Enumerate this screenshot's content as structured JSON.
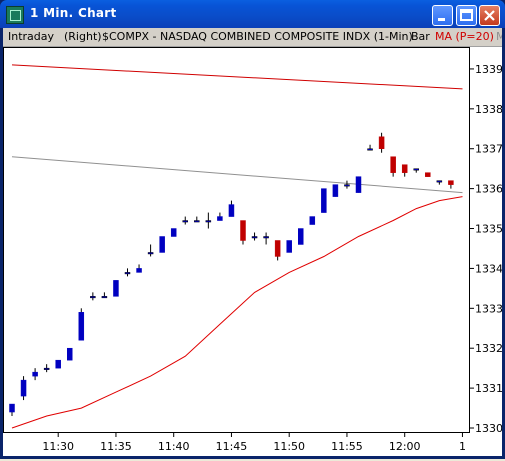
{
  "window": {
    "title": "1  Min. Chart"
  },
  "infobar": {
    "period": "Intraday",
    "scale": "(Right)",
    "symbol": "$COMPX - NASDAQ COMBINED COMPOSITE INDX (1-Min)",
    "style": "Bar",
    "indicator": "MA (P=20)",
    "extra": "M"
  },
  "colors": {
    "up": "#0000c0",
    "down": "#c00000",
    "ma": "#e00000",
    "gray_line": "#909090",
    "red_line": "#d00000"
  },
  "chart_data": {
    "type": "candlestick",
    "xlabel": "",
    "ylabel": "",
    "ylim": [
      1330,
      1339.5
    ],
    "y_ticks": [
      "1330",
      "1331",
      "1332",
      "1333",
      "1334",
      "1335",
      "1336",
      "1337",
      "1338",
      "1339"
    ],
    "x_ticks": [
      "11:30",
      "11:35",
      "11:40",
      "11:45",
      "11:50",
      "11:55",
      "12:00",
      "1"
    ],
    "candles": [
      {
        "t": "11:26",
        "o": 1330.4,
        "h": 1330.6,
        "l": 1330.3,
        "c": 1330.6
      },
      {
        "t": "11:27",
        "o": 1330.8,
        "h": 1331.3,
        "l": 1330.7,
        "c": 1331.2
      },
      {
        "t": "11:28",
        "o": 1331.3,
        "h": 1331.5,
        "l": 1331.2,
        "c": 1331.4
      },
      {
        "t": "11:29",
        "o": 1331.5,
        "h": 1331.6,
        "l": 1331.4,
        "c": 1331.5
      },
      {
        "t": "11:30",
        "o": 1331.5,
        "h": 1331.7,
        "l": 1331.5,
        "c": 1331.7
      },
      {
        "t": "11:31",
        "o": 1331.7,
        "h": 1332.0,
        "l": 1331.7,
        "c": 1332.0
      },
      {
        "t": "11:32",
        "o": 1332.2,
        "h": 1333.0,
        "l": 1332.2,
        "c": 1332.9
      },
      {
        "t": "11:33",
        "o": 1333.3,
        "h": 1333.4,
        "l": 1333.2,
        "c": 1333.3
      },
      {
        "t": "11:34",
        "o": 1333.3,
        "h": 1333.4,
        "l": 1333.3,
        "c": 1333.3
      },
      {
        "t": "11:35",
        "o": 1333.3,
        "h": 1333.7,
        "l": 1333.3,
        "c": 1333.7
      },
      {
        "t": "11:36",
        "o": 1333.9,
        "h": 1334.0,
        "l": 1333.8,
        "c": 1333.9
      },
      {
        "t": "11:37",
        "o": 1333.9,
        "h": 1334.1,
        "l": 1333.9,
        "c": 1334.0
      },
      {
        "t": "11:38",
        "o": 1334.4,
        "h": 1334.6,
        "l": 1334.3,
        "c": 1334.4
      },
      {
        "t": "11:39",
        "o": 1334.4,
        "h": 1334.8,
        "l": 1334.4,
        "c": 1334.8
      },
      {
        "t": "11:40",
        "o": 1334.8,
        "h": 1335.0,
        "l": 1334.8,
        "c": 1335.0
      },
      {
        "t": "11:41",
        "o": 1335.2,
        "h": 1335.3,
        "l": 1335.1,
        "c": 1335.2
      },
      {
        "t": "11:42",
        "o": 1335.2,
        "h": 1335.3,
        "l": 1335.2,
        "c": 1335.2
      },
      {
        "t": "11:43",
        "o": 1335.2,
        "h": 1335.4,
        "l": 1335.0,
        "c": 1335.2
      },
      {
        "t": "11:44",
        "o": 1335.2,
        "h": 1335.4,
        "l": 1335.2,
        "c": 1335.3
      },
      {
        "t": "11:45",
        "o": 1335.3,
        "h": 1335.7,
        "l": 1335.3,
        "c": 1335.6
      },
      {
        "t": "11:46",
        "o": 1335.2,
        "h": 1335.2,
        "l": 1334.6,
        "c": 1334.7
      },
      {
        "t": "11:47",
        "o": 1334.8,
        "h": 1334.9,
        "l": 1334.7,
        "c": 1334.8
      },
      {
        "t": "11:48",
        "o": 1334.8,
        "h": 1334.9,
        "l": 1334.6,
        "c": 1334.8
      },
      {
        "t": "11:49",
        "o": 1334.7,
        "h": 1334.7,
        "l": 1334.2,
        "c": 1334.3
      },
      {
        "t": "11:50",
        "o": 1334.4,
        "h": 1334.7,
        "l": 1334.4,
        "c": 1334.7
      },
      {
        "t": "11:51",
        "o": 1334.6,
        "h": 1335.0,
        "l": 1334.6,
        "c": 1335.0
      },
      {
        "t": "11:52",
        "o": 1335.1,
        "h": 1335.3,
        "l": 1335.1,
        "c": 1335.3
      },
      {
        "t": "11:53",
        "o": 1335.4,
        "h": 1336.0,
        "l": 1335.4,
        "c": 1336.0
      },
      {
        "t": "11:54",
        "o": 1335.8,
        "h": 1336.1,
        "l": 1335.8,
        "c": 1336.1
      },
      {
        "t": "11:55",
        "o": 1336.1,
        "h": 1336.2,
        "l": 1336.0,
        "c": 1336.1
      },
      {
        "t": "11:56",
        "o": 1335.9,
        "h": 1336.3,
        "l": 1335.9,
        "c": 1336.3
      },
      {
        "t": "11:57",
        "o": 1337.0,
        "h": 1337.1,
        "l": 1337.0,
        "c": 1337.0
      },
      {
        "t": "11:58",
        "o": 1337.3,
        "h": 1337.4,
        "l": 1336.9,
        "c": 1337.0
      },
      {
        "t": "11:59",
        "o": 1336.8,
        "h": 1336.8,
        "l": 1336.3,
        "c": 1336.4
      },
      {
        "t": "12:00",
        "o": 1336.6,
        "h": 1336.6,
        "l": 1336.3,
        "c": 1336.4
      },
      {
        "t": "12:01",
        "o": 1336.5,
        "h": 1336.5,
        "l": 1336.4,
        "c": 1336.5
      },
      {
        "t": "12:02",
        "o": 1336.4,
        "h": 1336.4,
        "l": 1336.3,
        "c": 1336.3
      },
      {
        "t": "12:03",
        "o": 1336.2,
        "h": 1336.2,
        "l": 1336.1,
        "c": 1336.2
      },
      {
        "t": "12:04",
        "o": 1336.2,
        "h": 1336.2,
        "l": 1336.0,
        "c": 1336.1
      }
    ],
    "lines": [
      {
        "name": "red_trend",
        "color": "#d00000",
        "points": [
          [
            0,
            1339.1
          ],
          [
            39,
            1338.5
          ]
        ]
      },
      {
        "name": "gray_trend",
        "color": "#909090",
        "points": [
          [
            0,
            1336.8
          ],
          [
            39,
            1335.9
          ]
        ]
      },
      {
        "name": "ma",
        "color": "#e00000",
        "points": [
          [
            0,
            1330.0
          ],
          [
            3,
            1330.3
          ],
          [
            6,
            1330.5
          ],
          [
            9,
            1330.9
          ],
          [
            12,
            1331.3
          ],
          [
            15,
            1331.8
          ],
          [
            18,
            1332.6
          ],
          [
            21,
            1333.4
          ],
          [
            24,
            1333.9
          ],
          [
            27,
            1334.3
          ],
          [
            30,
            1334.8
          ],
          [
            33,
            1335.2
          ],
          [
            35,
            1335.5
          ],
          [
            37,
            1335.7
          ],
          [
            39,
            1335.8
          ]
        ]
      }
    ]
  }
}
